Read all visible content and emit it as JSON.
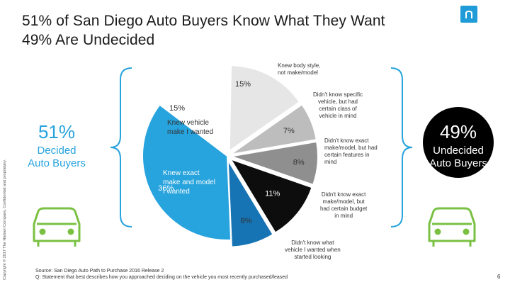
{
  "title": {
    "line1": "51%  of San Diego Auto Buyers Know What They Want",
    "line2": "49%  Are Undecided"
  },
  "copyright": "Copyright © 2017 The Nielsen Company. Confidential and proprietary.",
  "left_summary": {
    "percent": "51%",
    "label1": "Decided",
    "label2": "Auto Buyers"
  },
  "right_summary": {
    "percent": "49%",
    "label1": "Undecided",
    "label2": "Auto Buyers"
  },
  "colors": {
    "accent": "#27a3dd",
    "bracket": "#27a3dd",
    "car": "#7ac143"
  },
  "chart_data": {
    "type": "pie",
    "title": "51% of San Diego Auto Buyers Know What They Want / 49% Are Undecided",
    "slices": [
      {
        "label": "Knew body style, not make/model",
        "value": 15,
        "pct_label": "15%",
        "color": "#e6e6e6"
      },
      {
        "label": "Didn't know specific vehicle, but had certain class of vehicle in mind",
        "value": 7,
        "pct_label": "7%",
        "color": "#bdbdbd"
      },
      {
        "label": "Didn't know exact make/model, but had certain features in mind",
        "value": 8,
        "pct_label": "8%",
        "color": "#8f8f8f"
      },
      {
        "label": "Didn't know exact make/model, but had certain budget in mind",
        "value": 11,
        "pct_label": "11%",
        "color": "#0d0d0d"
      },
      {
        "label": "Didn't know what vehicle I wanted when started looking",
        "value": 8,
        "pct_label": "8%",
        "color": "#1673b4"
      },
      {
        "label": "Knew exact make and model I wanted",
        "value": 36,
        "pct_label": "36%",
        "color": "#27a3dd"
      },
      {
        "label": "Knew vehicle make I wanted",
        "value": 15,
        "pct_label": "15%",
        "color": "#ffffff"
      }
    ]
  },
  "inner_labels": {
    "make_model": [
      "Knew exact",
      "make and model",
      "I wanted"
    ],
    "make": [
      "Knew vehicle",
      "make I wanted"
    ]
  },
  "annotations": {
    "body_style": [
      "Knew body style,",
      "not make/model"
    ],
    "class": [
      "Didn't know specific",
      "vehicle, but had",
      "certain class of",
      "vehicle in mind"
    ],
    "features": [
      "Didn't know exact",
      "make/model, but had",
      "certain features in",
      "mind"
    ],
    "budget": [
      "Didn't know exact",
      "make/model, but",
      "had certain budget",
      "in mind"
    ],
    "unknown": [
      "Didn't know what",
      "vehicle I wanted when",
      "started looking"
    ]
  },
  "source": {
    "line1": "Source: San Diego Auto Path to Purchase 2016 Release 2",
    "line2": "Q: Statement that best describes how you approached deciding on the vehicle you most recently purchased/leased"
  },
  "page_number": "6"
}
